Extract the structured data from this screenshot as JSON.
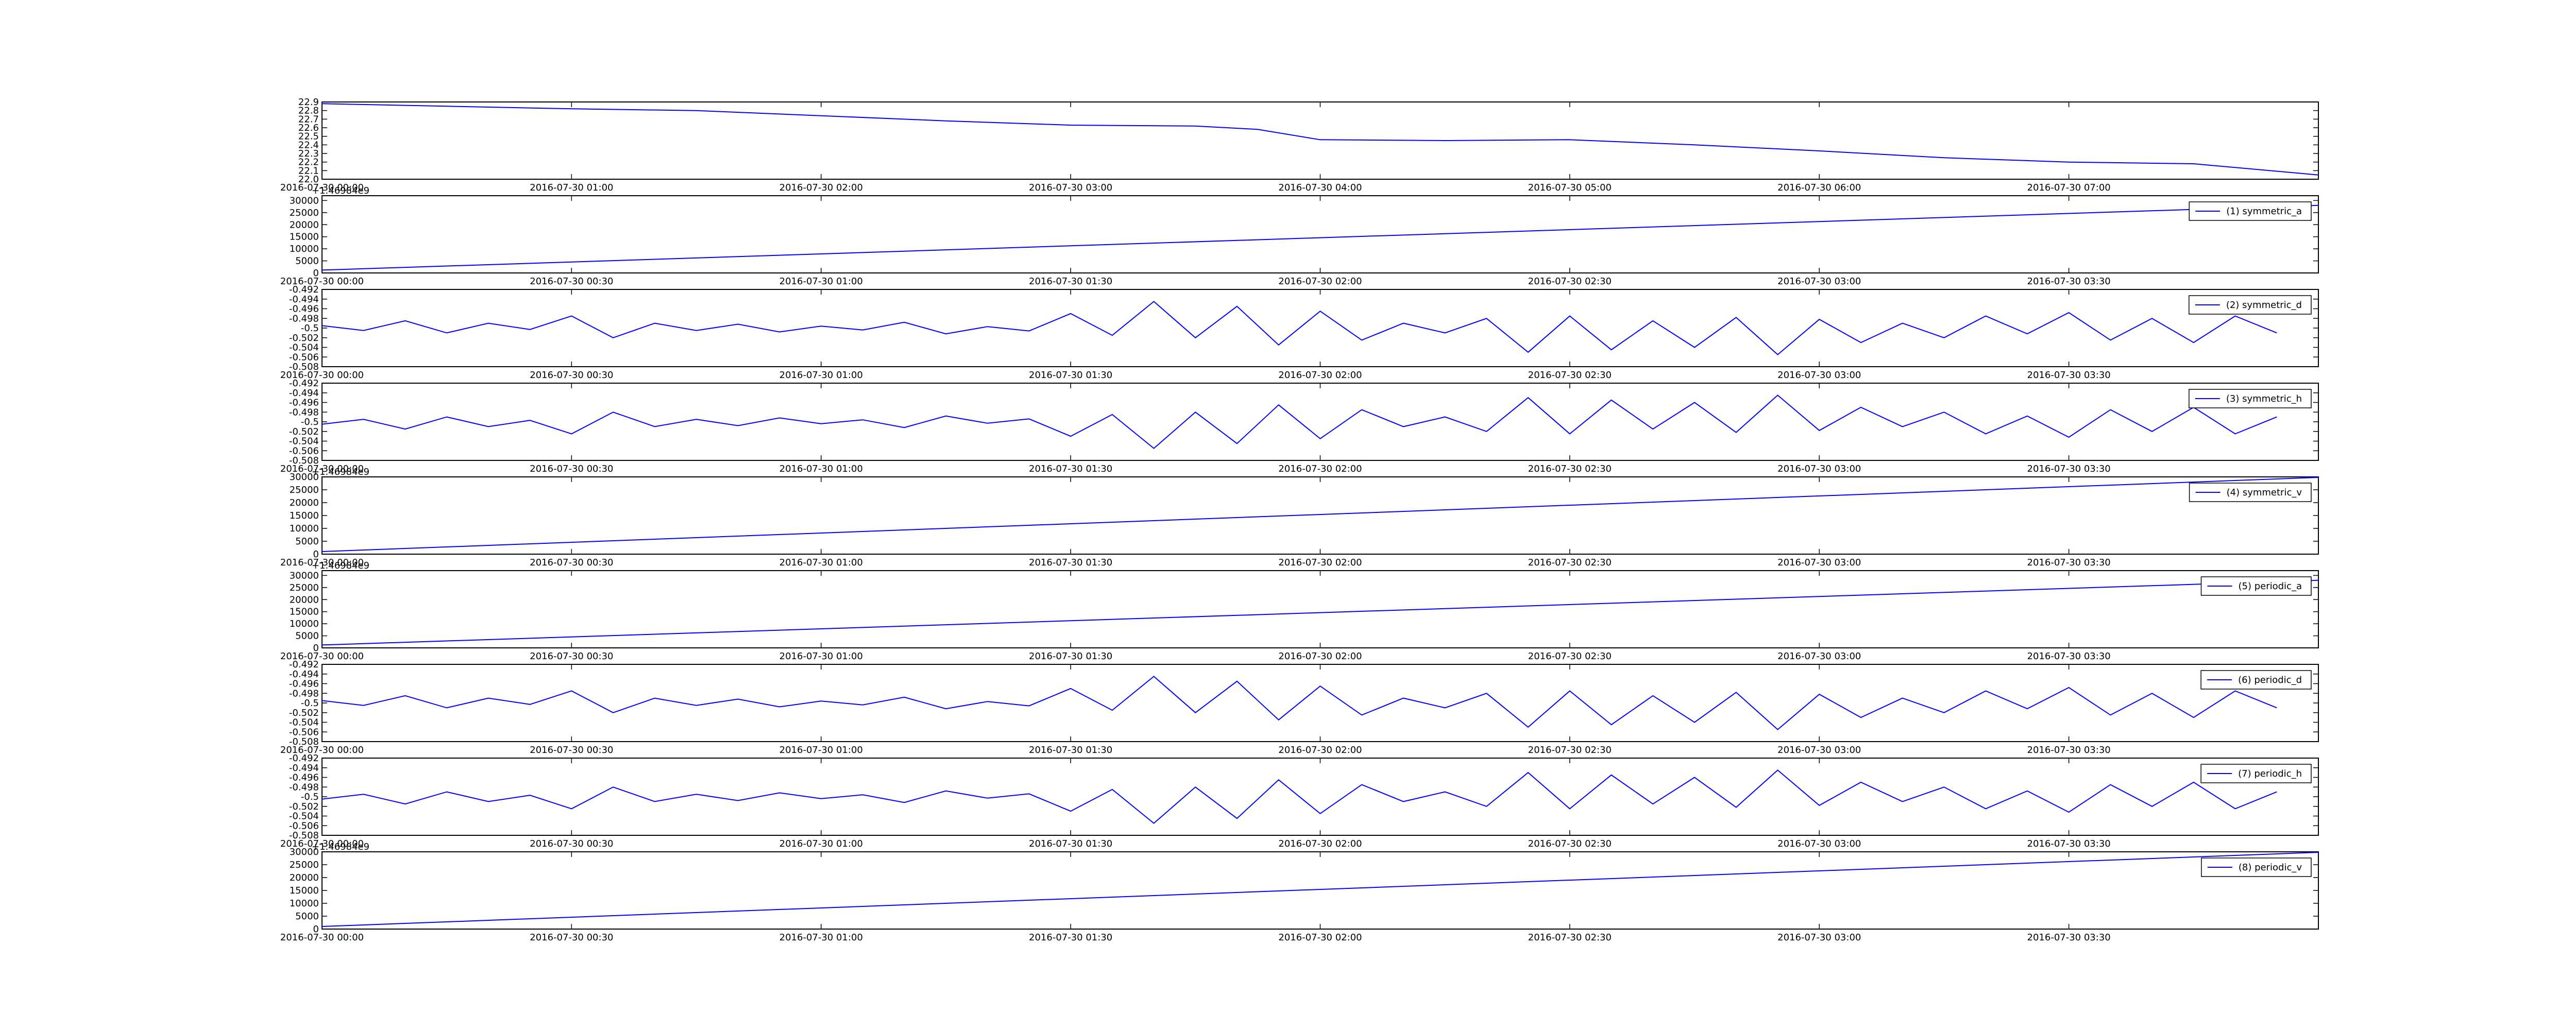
{
  "chart_data": [
    {
      "type": "line",
      "x": [
        "2016-07-30 00:00",
        "2016-07-30 00:30",
        "2016-07-30 01:00",
        "2016-07-30 01:30",
        "2016-07-30 02:00",
        "2016-07-30 02:30",
        "2016-07-30 03:00",
        "2016-07-30 03:30",
        "2016-07-30 03:45",
        "2016-07-30 04:00",
        "2016-07-30 04:30",
        "2016-07-30 05:00",
        "2016-07-30 05:30",
        "2016-07-30 06:00",
        "2016-07-30 06:30",
        "2016-07-30 07:00",
        "2016-07-30 07:30",
        "2016-07-30 08:00"
      ],
      "series": [
        {
          "color": "#0000ff",
          "values": [
            22.88,
            22.85,
            22.82,
            22.8,
            22.74,
            22.68,
            22.63,
            22.62,
            22.58,
            22.46,
            22.45,
            22.46,
            22.4,
            22.33,
            22.25,
            22.2,
            22.18,
            22.05
          ]
        }
      ],
      "xlim": [
        "2016-07-30 00:00",
        "2016-07-30 08:00"
      ],
      "xticks": [
        "2016-07-30 00:00",
        "2016-07-30 01:00",
        "2016-07-30 02:00",
        "2016-07-30 03:00",
        "2016-07-30 04:00",
        "2016-07-30 05:00",
        "2016-07-30 06:00",
        "2016-07-30 07:00"
      ],
      "ylim": [
        22.0,
        22.9
      ],
      "yticks": [
        {
          "value": 22.0,
          "label": "22.0"
        },
        22.1,
        22.2,
        22.3,
        22.4,
        22.5,
        22.6,
        22.7,
        22.8,
        22.9
      ]
    },
    {
      "type": "line",
      "offset_text": "+1.46984e9",
      "x": [
        "2016-07-30 00:00",
        "2016-07-30 04:00"
      ],
      "series": [
        {
          "name": "(1) symmetric_a",
          "color": "#0000ff",
          "values": [
            1200,
            28000
          ]
        }
      ],
      "xlim": [
        "2016-07-30 00:00",
        "2016-07-30 04:00"
      ],
      "xticks": [
        "2016-07-30 00:00",
        "2016-07-30 00:30",
        "2016-07-30 01:00",
        "2016-07-30 01:30",
        "2016-07-30 02:00",
        "2016-07-30 02:30",
        "2016-07-30 03:00",
        "2016-07-30 03:30"
      ],
      "ylim": [
        0,
        32000
      ],
      "yticks": [
        0,
        5000,
        10000,
        15000,
        20000,
        25000,
        30000
      ]
    },
    {
      "type": "line",
      "x": [
        "2016-07-30 00:00",
        "2016-07-30 00:05",
        "2016-07-30 00:10",
        "2016-07-30 00:15",
        "2016-07-30 00:20",
        "2016-07-30 00:25",
        "2016-07-30 00:30",
        "2016-07-30 00:35",
        "2016-07-30 00:40",
        "2016-07-30 00:45",
        "2016-07-30 00:50",
        "2016-07-30 00:55",
        "2016-07-30 01:00",
        "2016-07-30 01:05",
        "2016-07-30 01:10",
        "2016-07-30 01:15",
        "2016-07-30 01:20",
        "2016-07-30 01:25",
        "2016-07-30 01:30",
        "2016-07-30 01:35",
        "2016-07-30 01:40",
        "2016-07-30 01:45",
        "2016-07-30 01:50",
        "2016-07-30 01:55",
        "2016-07-30 02:00",
        "2016-07-30 02:05",
        "2016-07-30 02:10",
        "2016-07-30 02:15",
        "2016-07-30 02:20",
        "2016-07-30 02:25",
        "2016-07-30 02:30",
        "2016-07-30 02:35",
        "2016-07-30 02:40",
        "2016-07-30 02:45",
        "2016-07-30 02:50",
        "2016-07-30 02:55",
        "2016-07-30 03:00",
        "2016-07-30 03:05",
        "2016-07-30 03:10",
        "2016-07-30 03:15",
        "2016-07-30 03:20",
        "2016-07-30 03:25",
        "2016-07-30 03:30",
        "2016-07-30 03:35",
        "2016-07-30 03:40",
        "2016-07-30 03:45",
        "2016-07-30 03:50",
        "2016-07-30 03:55"
      ],
      "series": [
        {
          "name": "(2) symmetric_d",
          "color": "#0000ff",
          "values": [
            -0.4995,
            -0.5005,
            -0.4985,
            -0.501,
            -0.499,
            -0.5003,
            -0.4975,
            -0.502,
            -0.499,
            -0.5005,
            -0.4992,
            -0.5008,
            -0.4996,
            -0.5004,
            -0.4988,
            -0.5012,
            -0.4997,
            -0.5006,
            -0.497,
            -0.5015,
            -0.4945,
            -0.502,
            -0.4955,
            -0.5035,
            -0.4965,
            -0.5025,
            -0.499,
            -0.501,
            -0.498,
            -0.505,
            -0.4975,
            -0.5045,
            -0.4985,
            -0.504,
            -0.4978,
            -0.5055,
            -0.4982,
            -0.503,
            -0.499,
            -0.502,
            -0.4975,
            -0.5012,
            -0.4968,
            -0.5025,
            -0.498,
            -0.503,
            -0.4975,
            -0.501
          ]
        }
      ],
      "xlim": [
        "2016-07-30 00:00",
        "2016-07-30 04:00"
      ],
      "xticks": [
        "2016-07-30 00:00",
        "2016-07-30 00:30",
        "2016-07-30 01:00",
        "2016-07-30 01:30",
        "2016-07-30 02:00",
        "2016-07-30 02:30",
        "2016-07-30 03:00",
        "2016-07-30 03:30"
      ],
      "ylim": [
        -0.508,
        -0.492
      ],
      "yticks": [
        -0.508,
        -0.506,
        -0.504,
        -0.502,
        -0.5,
        -0.498,
        -0.496,
        -0.494,
        -0.492
      ]
    },
    {
      "type": "line",
      "x": [
        "2016-07-30 00:00",
        "2016-07-30 00:05",
        "2016-07-30 00:10",
        "2016-07-30 00:15",
        "2016-07-30 00:20",
        "2016-07-30 00:25",
        "2016-07-30 00:30",
        "2016-07-30 00:35",
        "2016-07-30 00:40",
        "2016-07-30 00:45",
        "2016-07-30 00:50",
        "2016-07-30 00:55",
        "2016-07-30 01:00",
        "2016-07-30 01:05",
        "2016-07-30 01:10",
        "2016-07-30 01:15",
        "2016-07-30 01:20",
        "2016-07-30 01:25",
        "2016-07-30 01:30",
        "2016-07-30 01:35",
        "2016-07-30 01:40",
        "2016-07-30 01:45",
        "2016-07-30 01:50",
        "2016-07-30 01:55",
        "2016-07-30 02:00",
        "2016-07-30 02:05",
        "2016-07-30 02:10",
        "2016-07-30 02:15",
        "2016-07-30 02:20",
        "2016-07-30 02:25",
        "2016-07-30 02:30",
        "2016-07-30 02:35",
        "2016-07-30 02:40",
        "2016-07-30 02:45",
        "2016-07-30 02:50",
        "2016-07-30 02:55",
        "2016-07-30 03:00",
        "2016-07-30 03:05",
        "2016-07-30 03:10",
        "2016-07-30 03:15",
        "2016-07-30 03:20",
        "2016-07-30 03:25",
        "2016-07-30 03:30",
        "2016-07-30 03:35",
        "2016-07-30 03:40",
        "2016-07-30 03:45",
        "2016-07-30 03:50",
        "2016-07-30 03:55"
      ],
      "series": [
        {
          "name": "(3) symmetric_h",
          "color": "#0000ff",
          "values": [
            -0.5005,
            -0.4995,
            -0.5015,
            -0.499,
            -0.501,
            -0.4997,
            -0.5025,
            -0.498,
            -0.501,
            -0.4995,
            -0.5008,
            -0.4992,
            -0.5004,
            -0.4996,
            -0.5012,
            -0.4988,
            -0.5003,
            -0.4994,
            -0.503,
            -0.4985,
            -0.5055,
            -0.498,
            -0.5045,
            -0.4965,
            -0.5035,
            -0.4975,
            -0.501,
            -0.499,
            -0.502,
            -0.495,
            -0.5025,
            -0.4955,
            -0.5015,
            -0.496,
            -0.5022,
            -0.4945,
            -0.5018,
            -0.497,
            -0.501,
            -0.498,
            -0.5025,
            -0.4988,
            -0.5032,
            -0.4975,
            -0.502,
            -0.497,
            -0.5025,
            -0.499
          ]
        }
      ],
      "xlim": [
        "2016-07-30 00:00",
        "2016-07-30 04:00"
      ],
      "xticks": [
        "2016-07-30 00:00",
        "2016-07-30 00:30",
        "2016-07-30 01:00",
        "2016-07-30 01:30",
        "2016-07-30 02:00",
        "2016-07-30 02:30",
        "2016-07-30 03:00",
        "2016-07-30 03:30"
      ],
      "ylim": [
        -0.508,
        -0.492
      ],
      "yticks": [
        -0.508,
        -0.506,
        -0.504,
        -0.502,
        -0.5,
        -0.498,
        -0.496,
        -0.494,
        -0.492
      ]
    },
    {
      "type": "line",
      "offset_text": "+1.46984e9",
      "x": [
        "2016-07-30 00:00",
        "2016-07-30 04:00"
      ],
      "series": [
        {
          "name": "(4) symmetric_v",
          "color": "#0000ff",
          "values": [
            1000,
            29800
          ]
        }
      ],
      "xlim": [
        "2016-07-30 00:00",
        "2016-07-30 04:00"
      ],
      "xticks": [
        "2016-07-30 00:00",
        "2016-07-30 00:30",
        "2016-07-30 01:00",
        "2016-07-30 01:30",
        "2016-07-30 02:00",
        "2016-07-30 02:30",
        "2016-07-30 03:00",
        "2016-07-30 03:30"
      ],
      "ylim": [
        0,
        30000
      ],
      "yticks": [
        0,
        5000,
        10000,
        15000,
        20000,
        25000,
        30000
      ]
    },
    {
      "type": "line",
      "offset_text": "+1.46984e9",
      "x": [
        "2016-07-30 00:00",
        "2016-07-30 04:00"
      ],
      "series": [
        {
          "name": "(5) periodic_a",
          "color": "#0000ff",
          "values": [
            1200,
            28000
          ]
        }
      ],
      "xlim": [
        "2016-07-30 00:00",
        "2016-07-30 04:00"
      ],
      "xticks": [
        "2016-07-30 00:00",
        "2016-07-30 00:30",
        "2016-07-30 01:00",
        "2016-07-30 01:30",
        "2016-07-30 02:00",
        "2016-07-30 02:30",
        "2016-07-30 03:00",
        "2016-07-30 03:30"
      ],
      "ylim": [
        0,
        32000
      ],
      "yticks": [
        0,
        5000,
        10000,
        15000,
        20000,
        25000,
        30000
      ]
    },
    {
      "type": "line",
      "x": [
        "2016-07-30 00:00",
        "2016-07-30 00:05",
        "2016-07-30 00:10",
        "2016-07-30 00:15",
        "2016-07-30 00:20",
        "2016-07-30 00:25",
        "2016-07-30 00:30",
        "2016-07-30 00:35",
        "2016-07-30 00:40",
        "2016-07-30 00:45",
        "2016-07-30 00:50",
        "2016-07-30 00:55",
        "2016-07-30 01:00",
        "2016-07-30 01:05",
        "2016-07-30 01:10",
        "2016-07-30 01:15",
        "2016-07-30 01:20",
        "2016-07-30 01:25",
        "2016-07-30 01:30",
        "2016-07-30 01:35",
        "2016-07-30 01:40",
        "2016-07-30 01:45",
        "2016-07-30 01:50",
        "2016-07-30 01:55",
        "2016-07-30 02:00",
        "2016-07-30 02:05",
        "2016-07-30 02:10",
        "2016-07-30 02:15",
        "2016-07-30 02:20",
        "2016-07-30 02:25",
        "2016-07-30 02:30",
        "2016-07-30 02:35",
        "2016-07-30 02:40",
        "2016-07-30 02:45",
        "2016-07-30 02:50",
        "2016-07-30 02:55",
        "2016-07-30 03:00",
        "2016-07-30 03:05",
        "2016-07-30 03:10",
        "2016-07-30 03:15",
        "2016-07-30 03:20",
        "2016-07-30 03:25",
        "2016-07-30 03:30",
        "2016-07-30 03:35",
        "2016-07-30 03:40",
        "2016-07-30 03:45",
        "2016-07-30 03:50",
        "2016-07-30 03:55"
      ],
      "series": [
        {
          "name": "(6) periodic_d",
          "color": "#0000ff",
          "values": [
            -0.4995,
            -0.5005,
            -0.4985,
            -0.501,
            -0.499,
            -0.5003,
            -0.4975,
            -0.502,
            -0.499,
            -0.5005,
            -0.4992,
            -0.5008,
            -0.4996,
            -0.5004,
            -0.4988,
            -0.5012,
            -0.4997,
            -0.5006,
            -0.497,
            -0.5015,
            -0.4945,
            -0.502,
            -0.4955,
            -0.5035,
            -0.4965,
            -0.5025,
            -0.499,
            -0.501,
            -0.498,
            -0.505,
            -0.4975,
            -0.5045,
            -0.4985,
            -0.504,
            -0.4978,
            -0.5055,
            -0.4982,
            -0.503,
            -0.499,
            -0.502,
            -0.4975,
            -0.5012,
            -0.4968,
            -0.5025,
            -0.498,
            -0.503,
            -0.4975,
            -0.501
          ]
        }
      ],
      "xlim": [
        "2016-07-30 00:00",
        "2016-07-30 04:00"
      ],
      "xticks": [
        "2016-07-30 00:00",
        "2016-07-30 00:30",
        "2016-07-30 01:00",
        "2016-07-30 01:30",
        "2016-07-30 02:00",
        "2016-07-30 02:30",
        "2016-07-30 03:00",
        "2016-07-30 03:30"
      ],
      "ylim": [
        -0.508,
        -0.492
      ],
      "yticks": [
        -0.508,
        -0.506,
        -0.504,
        -0.502,
        -0.5,
        -0.498,
        -0.496,
        -0.494,
        -0.492
      ]
    },
    {
      "type": "line",
      "x": [
        "2016-07-30 00:00",
        "2016-07-30 00:05",
        "2016-07-30 00:10",
        "2016-07-30 00:15",
        "2016-07-30 00:20",
        "2016-07-30 00:25",
        "2016-07-30 00:30",
        "2016-07-30 00:35",
        "2016-07-30 00:40",
        "2016-07-30 00:45",
        "2016-07-30 00:50",
        "2016-07-30 00:55",
        "2016-07-30 01:00",
        "2016-07-30 01:05",
        "2016-07-30 01:10",
        "2016-07-30 01:15",
        "2016-07-30 01:20",
        "2016-07-30 01:25",
        "2016-07-30 01:30",
        "2016-07-30 01:35",
        "2016-07-30 01:40",
        "2016-07-30 01:45",
        "2016-07-30 01:50",
        "2016-07-30 01:55",
        "2016-07-30 02:00",
        "2016-07-30 02:05",
        "2016-07-30 02:10",
        "2016-07-30 02:15",
        "2016-07-30 02:20",
        "2016-07-30 02:25",
        "2016-07-30 02:30",
        "2016-07-30 02:35",
        "2016-07-30 02:40",
        "2016-07-30 02:45",
        "2016-07-30 02:50",
        "2016-07-30 02:55",
        "2016-07-30 03:00",
        "2016-07-30 03:05",
        "2016-07-30 03:10",
        "2016-07-30 03:15",
        "2016-07-30 03:20",
        "2016-07-30 03:25",
        "2016-07-30 03:30",
        "2016-07-30 03:35",
        "2016-07-30 03:40",
        "2016-07-30 03:45",
        "2016-07-30 03:50",
        "2016-07-30 03:55"
      ],
      "series": [
        {
          "name": "(7) periodic_h",
          "color": "#0000ff",
          "values": [
            -0.5005,
            -0.4995,
            -0.5015,
            -0.499,
            -0.501,
            -0.4997,
            -0.5025,
            -0.498,
            -0.501,
            -0.4995,
            -0.5008,
            -0.4992,
            -0.5004,
            -0.4996,
            -0.5012,
            -0.4988,
            -0.5003,
            -0.4994,
            -0.503,
            -0.4985,
            -0.5055,
            -0.498,
            -0.5045,
            -0.4965,
            -0.5035,
            -0.4975,
            -0.501,
            -0.499,
            -0.502,
            -0.495,
            -0.5025,
            -0.4955,
            -0.5015,
            -0.496,
            -0.5022,
            -0.4945,
            -0.5018,
            -0.497,
            -0.501,
            -0.498,
            -0.5025,
            -0.4988,
            -0.5032,
            -0.4975,
            -0.502,
            -0.497,
            -0.5025,
            -0.499
          ]
        }
      ],
      "xlim": [
        "2016-07-30 00:00",
        "2016-07-30 04:00"
      ],
      "xticks": [
        "2016-07-30 00:00",
        "2016-07-30 00:30",
        "2016-07-30 01:00",
        "2016-07-30 01:30",
        "2016-07-30 02:00",
        "2016-07-30 02:30",
        "2016-07-30 03:00",
        "2016-07-30 03:30"
      ],
      "ylim": [
        -0.508,
        -0.492
      ],
      "yticks": [
        -0.508,
        -0.506,
        -0.504,
        -0.502,
        -0.5,
        -0.498,
        -0.496,
        -0.494,
        -0.492
      ]
    },
    {
      "type": "line",
      "offset_text": "+1.46984e9",
      "x": [
        "2016-07-30 00:00",
        "2016-07-30 04:00"
      ],
      "series": [
        {
          "name": "(8) periodic_v",
          "color": "#0000ff",
          "values": [
            1000,
            29800
          ]
        }
      ],
      "xlim": [
        "2016-07-30 00:00",
        "2016-07-30 04:00"
      ],
      "xticks": [
        "2016-07-30 00:00",
        "2016-07-30 00:30",
        "2016-07-30 01:00",
        "2016-07-30 01:30",
        "2016-07-30 02:00",
        "2016-07-30 02:30",
        "2016-07-30 03:00",
        "2016-07-30 03:30"
      ],
      "ylim": [
        0,
        30000
      ],
      "yticks": [
        0,
        5000,
        10000,
        15000,
        20000,
        25000,
        30000
      ]
    }
  ]
}
